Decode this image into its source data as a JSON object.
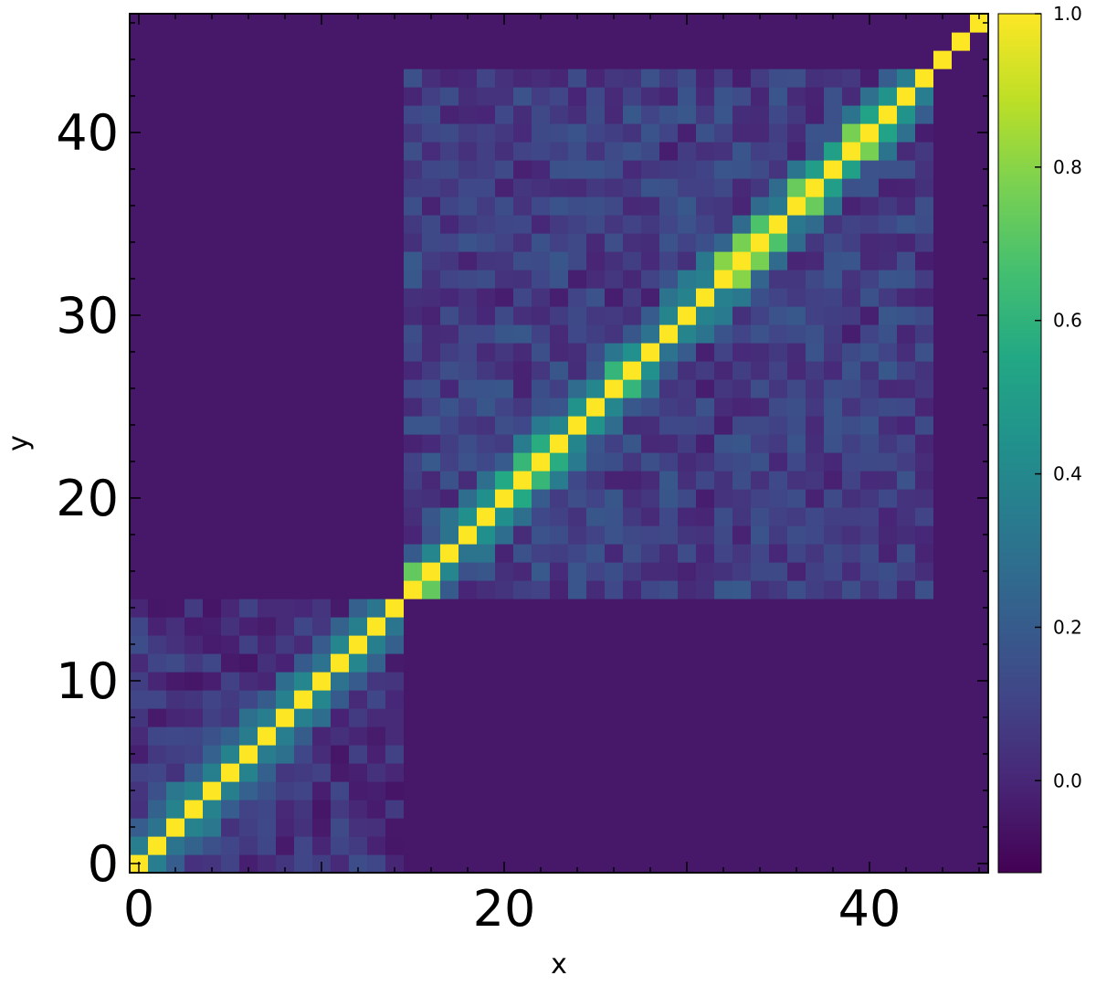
{
  "chart_data": {
    "type": "heatmap",
    "title": "",
    "xlabel": "x",
    "ylabel": "y",
    "n": 47,
    "xlim": [
      -0.5,
      46.5
    ],
    "ylim": [
      -0.5,
      46.5
    ],
    "x_ticks": [
      0,
      20,
      40
    ],
    "y_ticks": [
      0,
      10,
      20,
      30,
      40
    ],
    "colorbar": {
      "colormap": "viridis",
      "vmin": -0.12,
      "vmax": 1.0,
      "ticks": [
        0.0,
        0.2,
        0.4,
        0.6,
        0.8,
        1.0
      ],
      "tick_labels": [
        "0.0",
        "0.2",
        "0.4",
        "0.6",
        "0.8",
        "1.0"
      ]
    },
    "structure": {
      "diagonal_value": 1.0,
      "background_value": -0.05,
      "blocks": [
        {
          "start": 0,
          "end": 14,
          "offdiag_typical": 0.05,
          "offdiag_min": -0.1,
          "offdiag_max": 0.4
        },
        {
          "start": 15,
          "end": 43,
          "offdiag_typical": 0.08,
          "offdiag_min": -0.12,
          "offdiag_max": 0.8
        }
      ],
      "isolated_diagonal": [
        44,
        45,
        46
      ]
    }
  }
}
